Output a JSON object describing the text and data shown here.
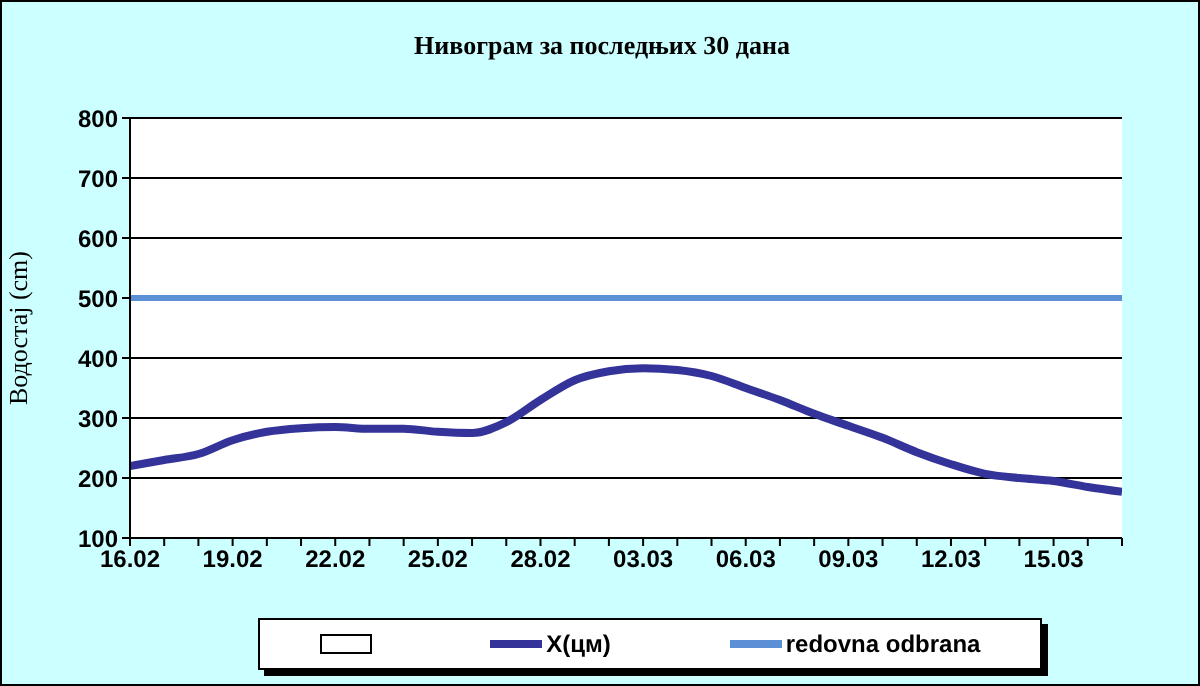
{
  "chart_data": {
    "type": "line",
    "title": "Нивограм за последњих 30 дана",
    "ylabel": "Водостај (cm)",
    "categories": [
      "16.02",
      null,
      null,
      "19.02",
      null,
      null,
      "22.02",
      null,
      null,
      "25.02",
      null,
      null,
      "28.02",
      null,
      null,
      "03.03",
      null,
      null,
      "06.03",
      null,
      null,
      "09.03",
      null,
      null,
      "12.03",
      null,
      null,
      "15.03",
      null,
      null
    ],
    "series": [
      {
        "name": "X(цм)",
        "color": "#333399",
        "values": [
          220,
          230,
          240,
          263,
          277,
          283,
          285,
          282,
          282,
          277,
          275,
          293,
          330,
          363,
          378,
          383,
          380,
          370,
          350,
          330,
          307,
          287,
          267,
          243,
          223,
          207,
          200,
          195,
          185,
          177
        ]
      }
    ],
    "ref_lines": [
      {
        "axis": "y",
        "value": 500,
        "label": "redovna odbrana",
        "color": "#5b8fd6"
      }
    ],
    "ylim": [
      100,
      800
    ],
    "yticks": [
      100,
      200,
      300,
      400,
      500,
      600,
      700,
      800
    ],
    "grid": "y",
    "legend": "bottom",
    "marker": "none",
    "line_style": "solid"
  }
}
